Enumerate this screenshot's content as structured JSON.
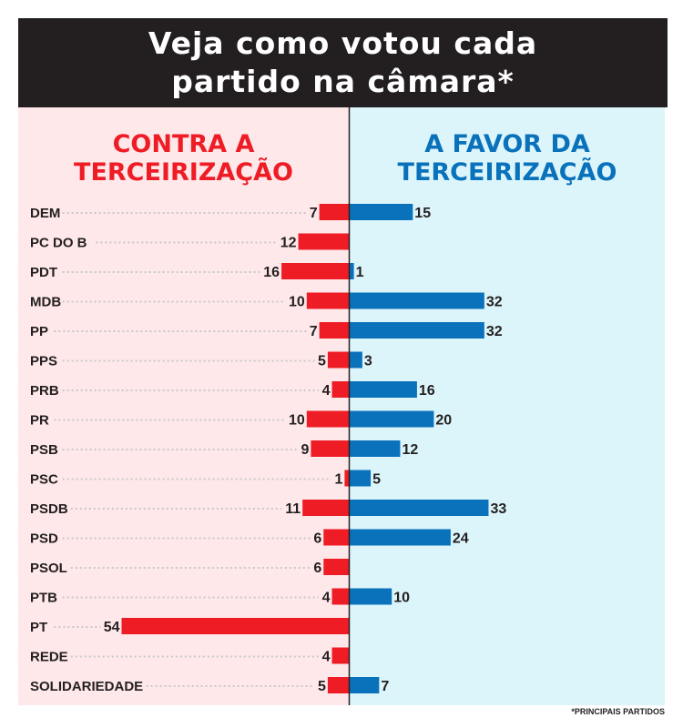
{
  "title_lines": [
    "Veja como votou cada",
    "partido na câmara*"
  ],
  "footnote": "*PRINCIPAIS PARTIDOS",
  "chart_data": {
    "type": "bar",
    "orientation": "horizontal-diverging",
    "title": "Veja como votou cada partido na câmara*",
    "categories": [
      "DEM",
      "PC DO B",
      "PDT",
      "MDB",
      "PP",
      "PPS",
      "PRB",
      "PR",
      "PSB",
      "PSC",
      "PSDB",
      "PSD",
      "PSOL",
      "PTB",
      "PT",
      "REDE",
      "SOLIDARIEDADE"
    ],
    "series": [
      {
        "name": "Contra a terceirização",
        "color": "#ee1c25",
        "direction": "left",
        "values": [
          7,
          12,
          16,
          10,
          7,
          5,
          4,
          10,
          9,
          1,
          11,
          6,
          6,
          4,
          54,
          4,
          5
        ]
      },
      {
        "name": "A favor da terceirização",
        "color": "#0a72bb",
        "direction": "right",
        "values": [
          15,
          null,
          1,
          32,
          32,
          3,
          16,
          20,
          12,
          5,
          33,
          24,
          null,
          10,
          null,
          null,
          7
        ]
      }
    ],
    "legend": [
      "Contra a terceirização",
      "A favor da terceirização"
    ],
    "left_bg": "#ffe8ea",
    "right_bg": "#dcf5fb"
  }
}
